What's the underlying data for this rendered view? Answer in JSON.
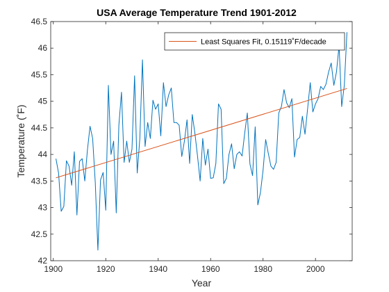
{
  "chart_data": {
    "type": "line",
    "title": "USA Average Temperature Trend 1901-2012",
    "xlabel": "Year",
    "ylabel": "Temperature (˚F)",
    "xlim": [
      1899,
      2014
    ],
    "ylim": [
      42,
      46.5
    ],
    "xticks": [
      1900,
      1920,
      1940,
      1960,
      1980,
      2000
    ],
    "yticks": [
      42,
      42.5,
      43,
      43.5,
      44,
      44.5,
      45,
      45.5,
      46,
      46.5
    ],
    "grid": false,
    "legend_position": "top-right",
    "series": [
      {
        "name": "",
        "color": "#0072BD",
        "x": [
          1901,
          1902,
          1903,
          1904,
          1905,
          1906,
          1907,
          1908,
          1909,
          1910,
          1911,
          1912,
          1913,
          1914,
          1915,
          1916,
          1917,
          1918,
          1919,
          1920,
          1921,
          1922,
          1923,
          1924,
          1925,
          1926,
          1927,
          1928,
          1929,
          1930,
          1931,
          1932,
          1933,
          1934,
          1935,
          1936,
          1937,
          1938,
          1939,
          1940,
          1941,
          1942,
          1943,
          1944,
          1945,
          1946,
          1947,
          1948,
          1949,
          1950,
          1951,
          1952,
          1953,
          1954,
          1955,
          1956,
          1957,
          1958,
          1959,
          1960,
          1961,
          1962,
          1963,
          1964,
          1965,
          1966,
          1967,
          1968,
          1969,
          1970,
          1971,
          1972,
          1973,
          1974,
          1975,
          1976,
          1977,
          1978,
          1979,
          1980,
          1981,
          1982,
          1983,
          1984,
          1985,
          1986,
          1987,
          1988,
          1989,
          1990,
          1991,
          1992,
          1993,
          1994,
          1995,
          1996,
          1997,
          1998,
          1999,
          2000,
          2001,
          2002,
          2003,
          2004,
          2005,
          2006,
          2007,
          2008,
          2009,
          2010,
          2011,
          2012
        ],
        "y": [
          43.92,
          43.65,
          42.93,
          43.02,
          43.88,
          43.78,
          43.42,
          44.05,
          42.86,
          43.87,
          43.92,
          43.5,
          44.08,
          44.53,
          44.3,
          43.47,
          42.2,
          43.52,
          43.66,
          42.95,
          45.3,
          44.0,
          44.25,
          42.9,
          44.55,
          45.17,
          43.85,
          44.25,
          43.85,
          44.1,
          45.48,
          43.65,
          44.3,
          45.78,
          44.15,
          44.6,
          44.3,
          45.02,
          44.85,
          44.95,
          44.35,
          45.35,
          44.9,
          45.12,
          45.25,
          44.6,
          44.6,
          44.55,
          43.96,
          44.25,
          44.65,
          43.83,
          44.75,
          44.4,
          43.97,
          43.5,
          44.3,
          43.8,
          44.1,
          43.55,
          43.56,
          43.83,
          44.95,
          44.85,
          43.45,
          43.55,
          44.0,
          44.2,
          43.73,
          44.0,
          44.05,
          43.97,
          44.4,
          44.78,
          43.82,
          43.6,
          44.52,
          43.05,
          43.28,
          43.7,
          44.28,
          44.02,
          43.78,
          43.72,
          43.85,
          44.78,
          44.9,
          45.22,
          44.97,
          44.88,
          45.05,
          43.95,
          44.28,
          44.32,
          44.72,
          44.38,
          44.86,
          45.35,
          44.8,
          44.95,
          45.05,
          45.28,
          45.22,
          45.32,
          45.55,
          45.72,
          45.3,
          45.55,
          46.05,
          44.9,
          45.3,
          46.3
        ]
      },
      {
        "name": "Least Squares Fit, 0.15119˚F/decade",
        "color": "#D95319",
        "x": [
          1901,
          2012
        ],
        "y": [
          43.56,
          45.24
        ]
      }
    ]
  }
}
